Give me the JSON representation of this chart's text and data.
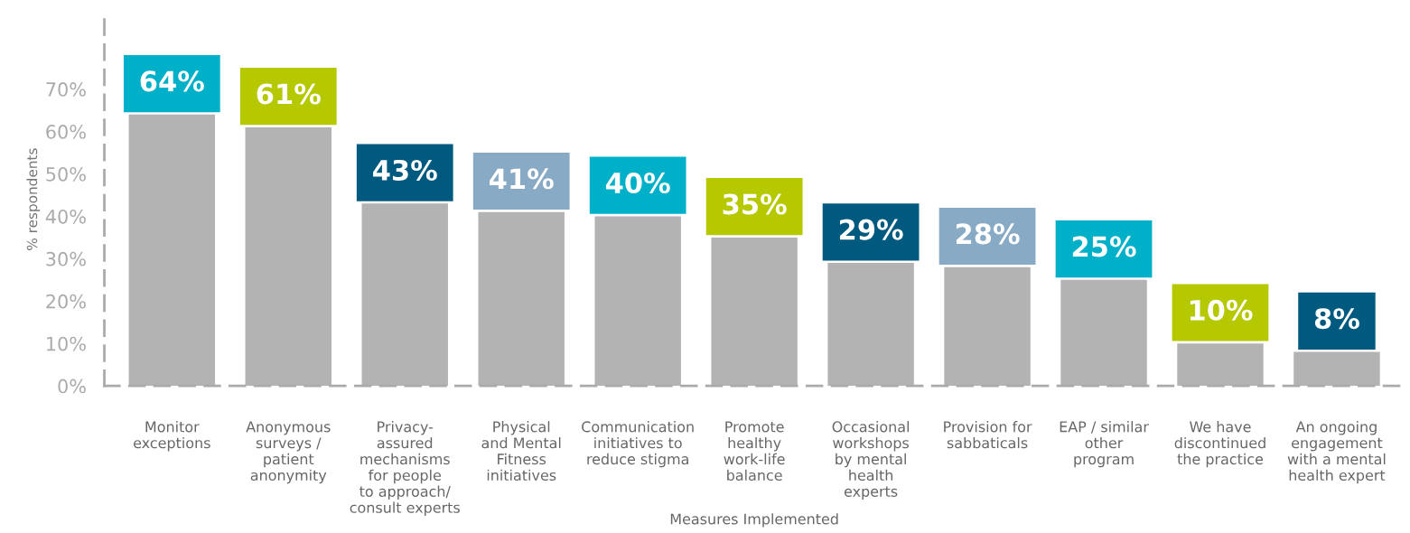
{
  "chart_data": {
    "type": "bar",
    "xlabel": "Measures Implemented",
    "ylabel": "% respondents",
    "categories": [
      "Monitor\nexceptions",
      "Anonymous\nsurveys /\npatient\nanonymity",
      "Privacy-\nassured\nmechanisms\nfor people\nto approach/\nconsult experts",
      "Physical\nand Mental\nFitness\ninitiatives",
      "Communication\ninitiatives to\nreduce stigma",
      "Promote\nhealthy\nwork-life\nbalance",
      "Occasional\nworkshops\nby mental\nhealth\nexperts",
      "Provision for\nsabbaticals",
      "EAP / similar\nother\nprogram",
      "We have\ndiscontinued\nthe practice",
      "An ongoing\nengagement\nwith a mental\nhealth expert"
    ],
    "values": [
      64,
      61,
      43,
      41,
      40,
      35,
      29,
      28,
      25,
      10,
      8
    ],
    "value_labels": [
      "64%",
      "61%",
      "43%",
      "41%",
      "40%",
      "35%",
      "29%",
      "28%",
      "25%",
      "10%",
      "8%"
    ],
    "color": "#b3b3b3",
    "ylim": [
      0,
      88
    ],
    "yticks": [
      {
        "value": 0,
        "label": "0%"
      },
      {
        "value": 10,
        "label": "10%"
      },
      {
        "value": 20,
        "label": "20%"
      },
      {
        "value": 30,
        "label": "30%"
      },
      {
        "value": 40,
        "label": "40%"
      },
      {
        "value": 50,
        "label": "50%"
      },
      {
        "value": 60,
        "label": "60%"
      },
      {
        "value": 70,
        "label": "70%"
      }
    ],
    "grid": false
  }
}
